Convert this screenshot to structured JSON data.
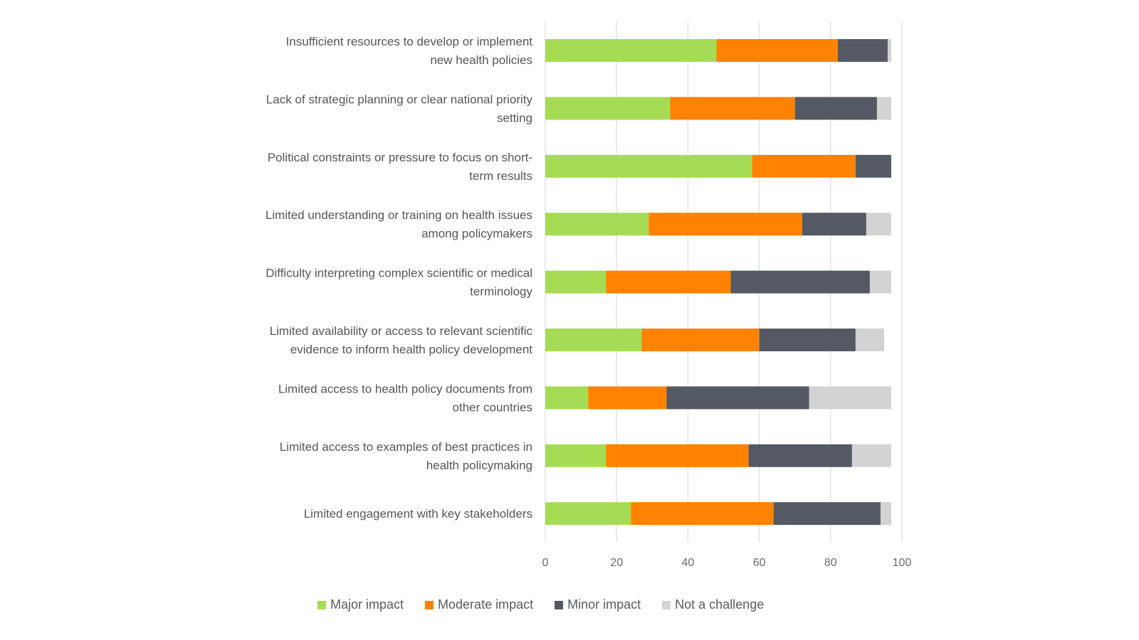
{
  "chart_data": {
    "type": "bar",
    "orientation": "horizontal",
    "stacked": true,
    "title": "",
    "xlabel": "",
    "ylabel": "",
    "xlim": [
      0,
      100
    ],
    "xticks": [
      0,
      20,
      40,
      60,
      80,
      100
    ],
    "grid": true,
    "legend_position": "bottom",
    "categories": [
      [
        "Insufficient resources to develop or implement",
        "new health policies"
      ],
      [
        "Lack of strategic planning or clear national priority",
        "setting"
      ],
      [
        "Political constraints or pressure to focus on short-",
        "term results"
      ],
      [
        "Limited understanding or training on health issues",
        "among policymakers"
      ],
      [
        "Difficulty interpreting complex scientific or medical",
        "terminology"
      ],
      [
        "Limited availability or access to relevant scientific",
        "evidence to inform health policy development"
      ],
      [
        "Limited access to health policy documents from",
        "other countries"
      ],
      [
        "Limited access to examples of best practices in",
        "health policymaking"
      ],
      [
        "Limited engagement with key stakeholders"
      ]
    ],
    "series": [
      {
        "name": "Major impact",
        "color": "#a6dc54",
        "values": [
          48,
          35,
          58,
          29,
          17,
          27,
          12,
          17,
          24
        ]
      },
      {
        "name": "Moderate impact",
        "color": "#ff8200",
        "values": [
          34,
          35,
          29,
          43,
          35,
          33,
          22,
          40,
          40
        ]
      },
      {
        "name": "Minor impact",
        "color": "#555963",
        "values": [
          14,
          23,
          10,
          18,
          39,
          27,
          40,
          29,
          30
        ]
      },
      {
        "name": "Not a challenge",
        "color": "#d3d3d3",
        "values": [
          1,
          4,
          0,
          7,
          6,
          8,
          23,
          11,
          3
        ]
      }
    ]
  },
  "colors": {
    "gridline": "#e3e3e3",
    "text": "#55565a"
  }
}
